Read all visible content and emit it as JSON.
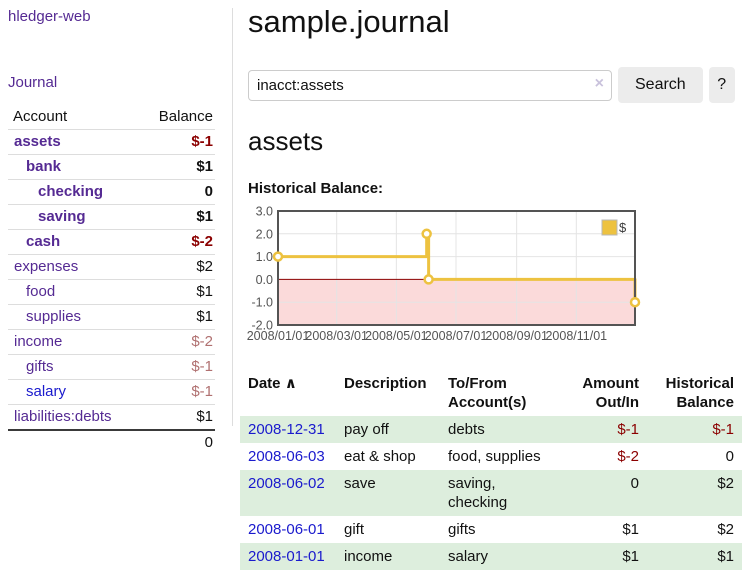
{
  "colors": {
    "link_purple": "#552a93",
    "link_blue": "#1a1acd",
    "negative_strong": "#8b0000",
    "negative_dim": "#b07070",
    "row_stripe_green": "#ddeedd",
    "button_bg": "#ececec",
    "divider": "#dddddd"
  },
  "sidebar": {
    "brand": "hledger-web",
    "nav_journal": "Journal",
    "accounts_table": {
      "headers": [
        "Account",
        "Balance"
      ],
      "rows": [
        {
          "account": "assets",
          "level": 1,
          "bold": true,
          "balance": "$-1",
          "balance_style": "neg-strong"
        },
        {
          "account": "bank",
          "level": 2,
          "bold": true,
          "balance": "$1",
          "balance_style": "pos"
        },
        {
          "account": "checking",
          "level": 3,
          "bold": true,
          "balance": "0",
          "balance_style": "pos"
        },
        {
          "account": "saving",
          "level": 3,
          "bold": true,
          "balance": "$1",
          "balance_style": "pos"
        },
        {
          "account": "cash",
          "level": 2,
          "bold": true,
          "balance": "$-2",
          "balance_style": "neg-strong"
        },
        {
          "account": "expenses",
          "level": 1,
          "bold": false,
          "balance": "$2",
          "balance_style": "pos"
        },
        {
          "account": "food",
          "level": 2,
          "bold": false,
          "balance": "$1",
          "balance_style": "pos"
        },
        {
          "account": "supplies",
          "level": 2,
          "bold": false,
          "balance": "$1",
          "balance_style": "pos"
        },
        {
          "account": "income",
          "level": 1,
          "bold": false,
          "balance": "$-2",
          "balance_style": "neg-dim"
        },
        {
          "account": "gifts",
          "level": 2,
          "bold": false,
          "balance": "$-1",
          "balance_style": "neg-dim"
        },
        {
          "account": "salary",
          "level": 2,
          "bold": false,
          "link_color": "blue",
          "balance": "$-1",
          "balance_style": "neg-dim"
        },
        {
          "account": "liabilities:debts",
          "level": 1,
          "bold": false,
          "balance": "$1",
          "balance_style": "pos"
        }
      ],
      "total": "0"
    }
  },
  "main": {
    "title": "sample.journal",
    "search": {
      "value": "inacct:assets",
      "clear_icon": "×",
      "button_label": "Search",
      "help_label": "?"
    },
    "account_heading": "assets",
    "chart_label": "Historical Balance:",
    "register_table": {
      "headers": [
        {
          "label": "Date",
          "sort_icon": "∧"
        },
        {
          "label": "Description"
        },
        {
          "label": "To/From Account(s)"
        },
        {
          "label": "Amount Out/In"
        },
        {
          "label": "Historical Balance"
        }
      ],
      "rows": [
        {
          "date": "2008-12-31",
          "description": "pay off",
          "accounts": "debts",
          "amount": "$-1",
          "amount_neg": true,
          "balance": "$-1",
          "balance_neg": true
        },
        {
          "date": "2008-06-03",
          "description": "eat & shop",
          "accounts": "food, supplies",
          "amount": "$-2",
          "amount_neg": true,
          "balance": "0",
          "balance_neg": false
        },
        {
          "date": "2008-06-02",
          "description": "save",
          "accounts": "saving, checking",
          "amount": "0",
          "amount_neg": false,
          "balance": "$2",
          "balance_neg": false
        },
        {
          "date": "2008-06-01",
          "description": "gift",
          "accounts": "gifts",
          "amount": "$1",
          "amount_neg": false,
          "balance": "$2",
          "balance_neg": false
        },
        {
          "date": "2008-01-01",
          "description": "income",
          "accounts": "salary",
          "amount": "$1",
          "amount_neg": false,
          "balance": "$1",
          "balance_neg": false
        }
      ]
    }
  },
  "chart_data": {
    "type": "line",
    "title": "Historical Balance",
    "legend": "$",
    "legend_position": "top-right",
    "grid": true,
    "series": [
      {
        "name": "$",
        "color": "#edc240",
        "step": true,
        "points": [
          {
            "date": "2008-01-01",
            "value": 1
          },
          {
            "date": "2008-06-01",
            "value": 2
          },
          {
            "date": "2008-06-03",
            "value": 0
          },
          {
            "date": "2008-12-31",
            "value": -1
          }
        ]
      }
    ],
    "ylim": [
      -2,
      3
    ],
    "yticks": [
      3.0,
      2.0,
      1.0,
      0.0,
      -1.0,
      -2.0
    ],
    "x_range": [
      "2008-01-01",
      "2008-12-31"
    ],
    "xticklabels": [
      "2008/01/01",
      "2008/03/01",
      "2008/05/01",
      "2008/07/01",
      "2008/09/01",
      "2008/11/01"
    ],
    "negative_fill": "#fbdada",
    "zero_line_color": "#8b0000",
    "grid_color": "#e4e4e4",
    "border_color": "#545454",
    "tick_text_color": "#545454"
  }
}
